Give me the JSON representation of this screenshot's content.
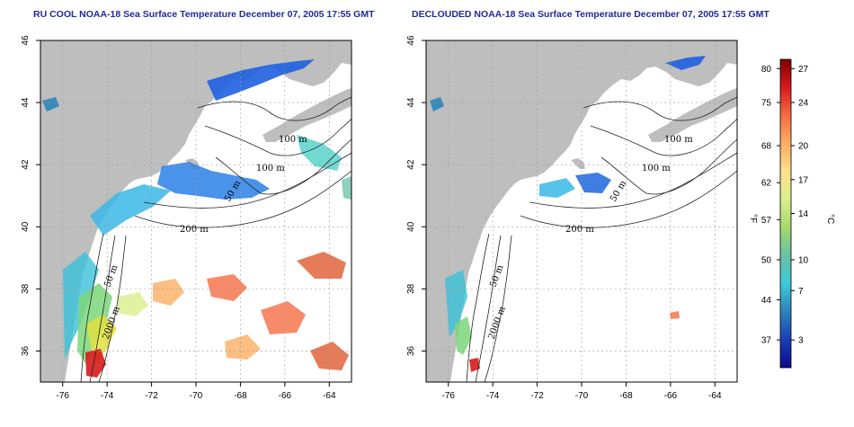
{
  "maps": [
    {
      "title": "RU COOL NOAA-18 Sea Surface Temperature December 07, 2005 17:55 GMT",
      "x_ticks": [
        "-76",
        "-74",
        "-72",
        "-70",
        "-68",
        "-66",
        "-64"
      ],
      "y_ticks": [
        "46",
        "44",
        "42",
        "40",
        "38",
        "36"
      ],
      "contour_labels": [
        "100 m",
        "100 m",
        "50 m",
        "200 m",
        "50 m",
        "2000 m"
      ]
    },
    {
      "title": "DECLOUDED NOAA-18 Sea Surface Temperature December 07, 2005 17:55 GMT",
      "x_ticks": [
        "-76",
        "-74",
        "-72",
        "-70",
        "-68",
        "-66",
        "-64"
      ],
      "y_ticks": [
        "46",
        "44",
        "42",
        "40",
        "38",
        "36"
      ],
      "contour_labels": [
        "100 m",
        "100 m",
        "50 m",
        "200 m",
        "50 m",
        "2000 m"
      ]
    }
  ],
  "colorbar": {
    "f_label": "°F",
    "c_label": "°C",
    "f_ticks": [
      "80",
      "75",
      "68",
      "62",
      "57",
      "50",
      "44",
      "37"
    ],
    "c_ticks": [
      "27",
      "24",
      "20",
      "17",
      "14",
      "10",
      "7",
      "3"
    ],
    "colors": [
      "#7f0000",
      "#d7191c",
      "#f46d43",
      "#fdae61",
      "#fee08b",
      "#d9ef8b",
      "#a6d96a",
      "#66c2a5",
      "#3ec9d9",
      "#2b83ba",
      "#1a3fb5",
      "#0a0a8c"
    ]
  },
  "colors": {
    "land": "#bebebe",
    "ocean": "#ffffff",
    "title": "#1f2a9c"
  }
}
